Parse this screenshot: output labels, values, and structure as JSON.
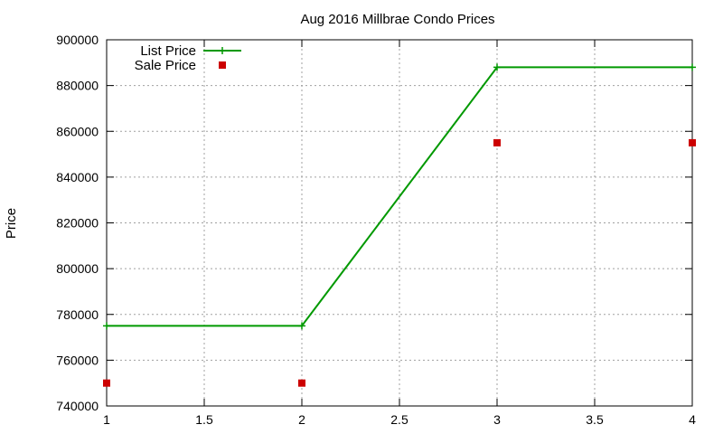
{
  "chart_data": {
    "type": "line",
    "title": "Aug 2016 Millbrae Condo Prices",
    "xlabel": "",
    "ylabel": "Price",
    "xlim": [
      1,
      4
    ],
    "ylim": [
      740000,
      900000
    ],
    "x_ticks": [
      "1",
      "1.5",
      "2",
      "2.5",
      "3",
      "3.5",
      "4"
    ],
    "x_tick_values": [
      1,
      1.5,
      2,
      2.5,
      3,
      3.5,
      4
    ],
    "y_ticks": [
      "740000",
      "760000",
      "780000",
      "800000",
      "820000",
      "840000",
      "860000",
      "880000",
      "900000"
    ],
    "y_tick_values": [
      740000,
      760000,
      780000,
      800000,
      820000,
      840000,
      860000,
      880000,
      900000
    ],
    "grid": true,
    "legend_position": "top-left",
    "series": [
      {
        "name": "List Price",
        "style": "line-plus",
        "color": "#009900",
        "x": [
          1,
          2,
          3,
          4
        ],
        "y": [
          775000,
          775000,
          888000,
          888000
        ]
      },
      {
        "name": "Sale Price",
        "style": "square-markers",
        "color": "#cc0000",
        "x": [
          1,
          2,
          3,
          4
        ],
        "y": [
          750000,
          750000,
          855000,
          855000
        ]
      }
    ]
  }
}
